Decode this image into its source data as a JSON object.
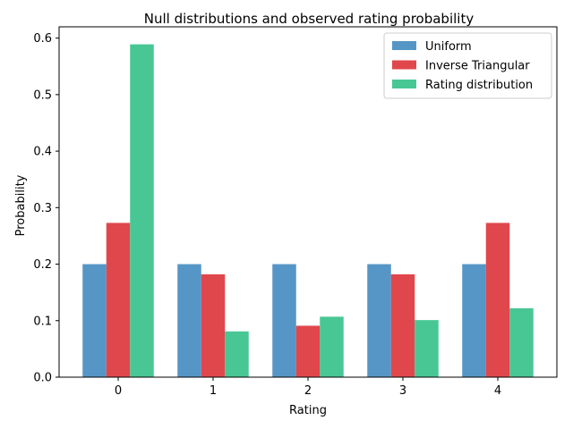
{
  "chart_data": {
    "type": "bar",
    "title": "Null distributions and observed rating probability",
    "xlabel": "Rating",
    "ylabel": "Probability",
    "categories": [
      "0",
      "1",
      "2",
      "3",
      "4"
    ],
    "ylim": [
      0,
      0.62
    ],
    "yticks": [
      0.0,
      0.1,
      0.2,
      0.3,
      0.4,
      0.5,
      0.6
    ],
    "ytick_labels": [
      "0.0",
      "0.1",
      "0.2",
      "0.3",
      "0.4",
      "0.5",
      "0.6"
    ],
    "grid": false,
    "legend_position": "top-right",
    "series": [
      {
        "name": "Uniform",
        "color": "#5596c6",
        "values": [
          0.2,
          0.2,
          0.2,
          0.2,
          0.2
        ]
      },
      {
        "name": "Inverse Triangular",
        "color": "#e0474c",
        "values": [
          0.273,
          0.182,
          0.091,
          0.182,
          0.273
        ]
      },
      {
        "name": "Rating distribution",
        "color": "#48c794",
        "values": [
          0.589,
          0.081,
          0.107,
          0.101,
          0.122
        ]
      }
    ]
  }
}
